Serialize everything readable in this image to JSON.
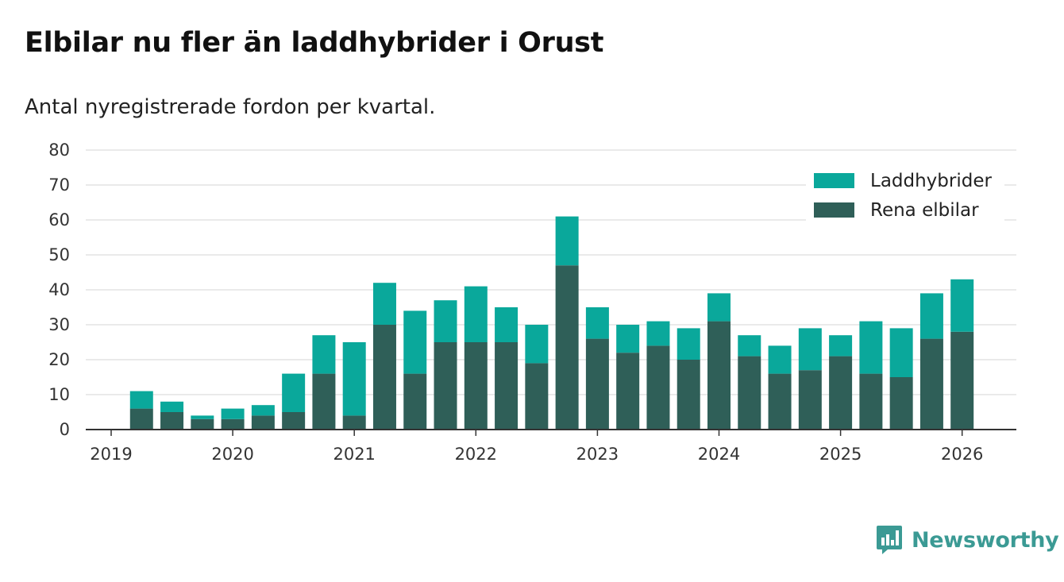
{
  "title": "Elbilar nu fler än laddhybrider i Orust",
  "subtitle": "Antal nyregistrerade fordon per kvartal.",
  "brand": {
    "name": "Newsworthy",
    "icon": "newsworthy-logo-icon",
    "color": "#3b9a94"
  },
  "colors": {
    "phev": "#0aa89b",
    "bev": "#2f5f58",
    "grid": "#dddddd",
    "axis": "#333333"
  },
  "chart_data": {
    "type": "bar",
    "stacked": true,
    "title": "Elbilar nu fler än laddhybrider i Orust",
    "subtitle": "Antal nyregistrerade fordon per kvartal.",
    "xlabel": "",
    "ylabel": "",
    "ylim": [
      0,
      80
    ],
    "yticks": [
      0,
      10,
      20,
      30,
      40,
      50,
      60,
      70,
      80
    ],
    "xticks": [
      "2019",
      "2020",
      "2021",
      "2022",
      "2023",
      "2024",
      "2025",
      "2026"
    ],
    "grid": true,
    "legend_position": "top-right",
    "categories": [
      "2019 Q2",
      "2019 Q3",
      "2019 Q4",
      "2020 Q1",
      "2020 Q2",
      "2020 Q3",
      "2020 Q4",
      "2021 Q1",
      "2021 Q2",
      "2021 Q3",
      "2021 Q4",
      "2022 Q1",
      "2022 Q2",
      "2022 Q3",
      "2022 Q4",
      "2023 Q1",
      "2023 Q2",
      "2023 Q3",
      "2023 Q4",
      "2024 Q1",
      "2024 Q2",
      "2024 Q3",
      "2024 Q4",
      "2025 Q1",
      "2025 Q2",
      "2025 Q3",
      "2025 Q4",
      "2026 Q1"
    ],
    "series": [
      {
        "name": "Rena elbilar",
        "color": "#2f5f58",
        "values": [
          6,
          5,
          3,
          3,
          4,
          5,
          16,
          4,
          30,
          16,
          25,
          25,
          25,
          19,
          47,
          26,
          22,
          24,
          20,
          31,
          21,
          16,
          17,
          21,
          16,
          15,
          26,
          28
        ]
      },
      {
        "name": "Laddhybrider",
        "color": "#0aa89b",
        "values": [
          5,
          3,
          1,
          3,
          3,
          11,
          11,
          21,
          12,
          18,
          12,
          16,
          10,
          11,
          14,
          9,
          8,
          7,
          9,
          8,
          6,
          8,
          12,
          6,
          15,
          14,
          13,
          15
        ]
      }
    ],
    "legend": [
      "Laddhybrider",
      "Rena elbilar"
    ]
  }
}
